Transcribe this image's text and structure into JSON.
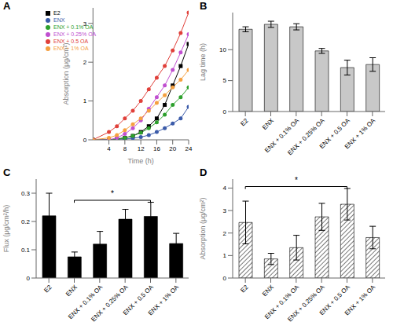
{
  "chart_data": [
    {
      "type": "line",
      "title": "A",
      "x_label": "Time (h)",
      "y_label": "Absorption (μg/cm²)",
      "x": [
        0,
        4,
        6,
        8,
        10,
        12,
        14,
        16,
        18,
        20,
        22,
        24
      ],
      "xlim": [
        0,
        24
      ],
      "xticks": [
        4,
        8,
        12,
        16,
        20,
        24
      ],
      "ylim": [
        0,
        3.4
      ],
      "yticks": [
        0,
        1,
        2,
        3
      ],
      "legend": "top-left",
      "series": [
        {
          "name": "E2",
          "color": "#000000",
          "marker": "square",
          "values": [
            0,
            0,
            0.02,
            0.05,
            0.1,
            0.2,
            0.35,
            0.55,
            0.9,
            1.4,
            1.9,
            2.47
          ]
        },
        {
          "name": "ENX",
          "color": "#3b5ba9",
          "marker": "circle",
          "values": [
            0,
            0,
            0.01,
            0.02,
            0.04,
            0.07,
            0.12,
            0.2,
            0.3,
            0.42,
            0.55,
            0.85
          ]
        },
        {
          "name": "ENX + 0.1% OA",
          "color": "#2ca02c",
          "marker": "circle",
          "values": [
            0,
            0,
            0.02,
            0.05,
            0.1,
            0.18,
            0.3,
            0.45,
            0.65,
            0.9,
            1.1,
            1.35
          ]
        },
        {
          "name": "ENX + 0.25% OA",
          "color": "#c04fd0",
          "marker": "circle",
          "values": [
            0,
            0,
            0.05,
            0.15,
            0.3,
            0.5,
            0.8,
            1.1,
            1.4,
            1.8,
            2.25,
            2.72
          ]
        },
        {
          "name": "ENX + 0.5 OA",
          "color": "#e0403a",
          "marker": "circle",
          "values": [
            0,
            0.2,
            0.35,
            0.55,
            0.75,
            1.0,
            1.3,
            1.6,
            1.9,
            2.3,
            2.75,
            3.28
          ]
        },
        {
          "name": "ENX + 1% OA",
          "color": "#f5a040",
          "marker": "circle",
          "values": [
            0,
            0.05,
            0.12,
            0.25,
            0.4,
            0.55,
            0.75,
            0.95,
            1.15,
            1.35,
            1.55,
            1.8
          ]
        }
      ]
    },
    {
      "type": "bar",
      "title": "B",
      "y_label": "Lag time (h)",
      "categories": [
        "E2",
        "ENX",
        "ENX + 0.1% OA",
        "ENX + 0.25% OA",
        "ENX + 0.5 OA",
        "ENX + 1% OA"
      ],
      "values": [
        13.3,
        14.1,
        13.7,
        9.8,
        7.1,
        7.6
      ],
      "errors": [
        0.4,
        0.5,
        0.5,
        0.4,
        1.2,
        1.1
      ],
      "color": "#c8c8c8",
      "ylim": [
        0,
        16
      ],
      "yticks": [
        0,
        5,
        10
      ]
    },
    {
      "type": "bar",
      "title": "C",
      "y_label": "Flux (μg/cm²/h)",
      "categories": [
        "E2",
        "ENX",
        "ENX + 0.1% OA",
        "ENX + 0.25% OA",
        "ENX + 0.5 OA",
        "ENX + 1% OA"
      ],
      "values": [
        0.22,
        0.075,
        0.12,
        0.208,
        0.218,
        0.122
      ],
      "errors": [
        0.08,
        0.017,
        0.045,
        0.035,
        0.05,
        0.036
      ],
      "color": "#000000",
      "ylim": [
        0,
        0.35
      ],
      "yticks": [
        0,
        0.1,
        0.2,
        0.3
      ],
      "annotations": [
        {
          "text": "*",
          "from": "ENX",
          "to": "ENX + 0.5 OA"
        }
      ]
    },
    {
      "type": "bar",
      "title": "D",
      "y_label": "Absorption (μg/cm²)",
      "categories": [
        "E2",
        "ENX",
        "ENX + 0.1% OA",
        "ENX + 0.25% OA",
        "ENX + 0.5 OA",
        "ENX + 1% OA"
      ],
      "values": [
        2.47,
        0.85,
        1.35,
        2.72,
        3.28,
        1.8
      ],
      "errors": [
        0.95,
        0.25,
        0.55,
        0.6,
        0.7,
        0.5
      ],
      "color": "#555555",
      "ylim": [
        0,
        4.4
      ],
      "yticks": [
        0,
        1,
        2,
        3,
        4
      ],
      "annotations": [
        {
          "text": "*",
          "from": "E2",
          "to": "ENX + 0.5 OA"
        }
      ]
    }
  ]
}
